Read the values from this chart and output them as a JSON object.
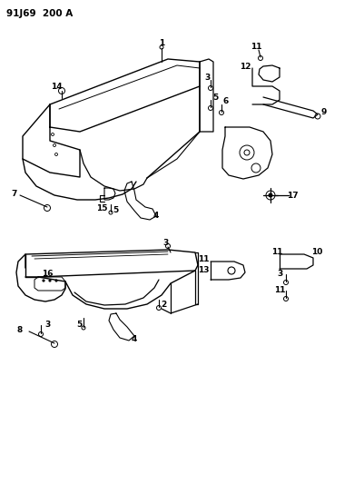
{
  "title": "91J69  200 A",
  "background_color": "#ffffff",
  "line_color": "#000000",
  "fig_width": 3.9,
  "fig_height": 5.33,
  "dpi": 100
}
